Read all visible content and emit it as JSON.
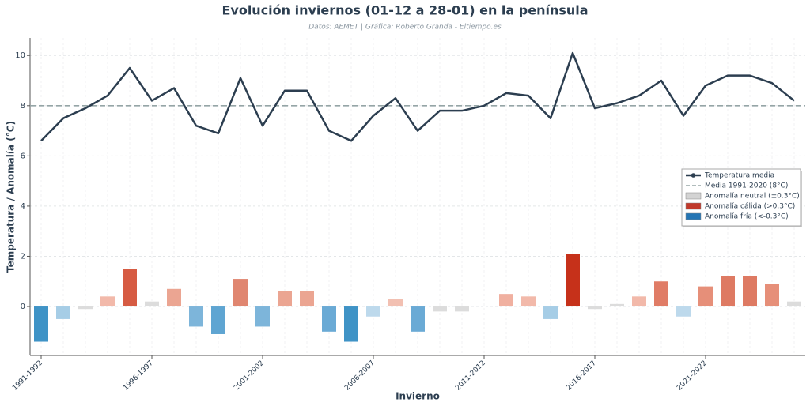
{
  "chart_data": {
    "type": "line_bar",
    "title": "Evolución inviernos (01-12 a 28-01) en la península",
    "subtitle": "Datos: AEMET | Gráfica: Roberto Granda - Eltiempo.es",
    "y_label": "Temperatura / Anomalía (°C)",
    "x_label": "Invierno",
    "categories": [
      "1991-1992",
      null,
      null,
      null,
      null,
      "1996-1997",
      null,
      null,
      null,
      null,
      "2001-2002",
      null,
      null,
      null,
      null,
      "2006-2007",
      null,
      null,
      null,
      null,
      "2011-2012",
      null,
      null,
      null,
      null,
      "2016-2017",
      null,
      null,
      null,
      null,
      "2021-2022",
      null,
      null,
      null,
      null
    ],
    "series": [
      {
        "name": "Temperatura media",
        "kind": "line",
        "color": "#2c3e50",
        "values": [
          6.6,
          7.5,
          7.9,
          8.4,
          9.5,
          8.2,
          8.7,
          7.2,
          6.9,
          9.1,
          7.2,
          8.6,
          8.6,
          7.0,
          6.6,
          7.6,
          8.3,
          7.0,
          7.8,
          7.8,
          8.0,
          8.5,
          8.4,
          7.5,
          10.1,
          7.9,
          8.1,
          8.4,
          9.0,
          7.6,
          8.8,
          9.2,
          9.2,
          8.9,
          8.2
        ]
      },
      {
        "name": "Anomalía",
        "kind": "bar",
        "values": [
          -1.4,
          -0.5,
          -0.1,
          0.4,
          1.5,
          0.2,
          0.7,
          -0.8,
          -1.1,
          1.1,
          -0.8,
          0.6,
          0.6,
          -1.0,
          -1.4,
          -0.4,
          0.3,
          -1.0,
          -0.2,
          -0.2,
          0.0,
          0.5,
          0.4,
          -0.5,
          2.1,
          -0.1,
          0.1,
          0.4,
          1.0,
          -0.4,
          0.8,
          1.2,
          1.2,
          0.9,
          0.2
        ],
        "colors": [
          "#3f93c6",
          "#a6cde6",
          "#dcdcdc",
          "#f2b9aa",
          "#d65b43",
          "#dcdcdc",
          "#eba592",
          "#7db5da",
          "#5fa5d2",
          "#e08670",
          "#7db5da",
          "#eba592",
          "#eba592",
          "#6aaad5",
          "#3f93c6",
          "#bdd9ec",
          "#f2c0b2",
          "#6aaad5",
          "#dcdcdc",
          "#dcdcdc",
          "#dcdcdc",
          "#f0b0a0",
          "#f2b9aa",
          "#a6cde6",
          "#c6311a",
          "#dcdcdc",
          "#dcdcdc",
          "#f2b9aa",
          "#e07c66",
          "#bdd9ec",
          "#e68f79",
          "#de7a63",
          "#de7a63",
          "#e68f79",
          "#dcdcdc"
        ]
      }
    ],
    "reference_line": {
      "value": 8,
      "label": "Media 1991-2020 (8°C)",
      "color": "#95a5a6"
    },
    "legend_patches": [
      {
        "name": "Anomalía neutral (±0.3°C)",
        "color": "#d3d3d3"
      },
      {
        "name": "Anomalía cálida (>0.3°C)",
        "color": "#c0392b"
      },
      {
        "name": "Anomalía fría (<-0.3°C)",
        "color": "#2475b4"
      }
    ],
    "ylim": [
      -1.95,
      10.7
    ],
    "yticks": [
      0,
      2,
      4,
      6,
      8,
      10
    ],
    "grid": true,
    "legend": "right"
  }
}
